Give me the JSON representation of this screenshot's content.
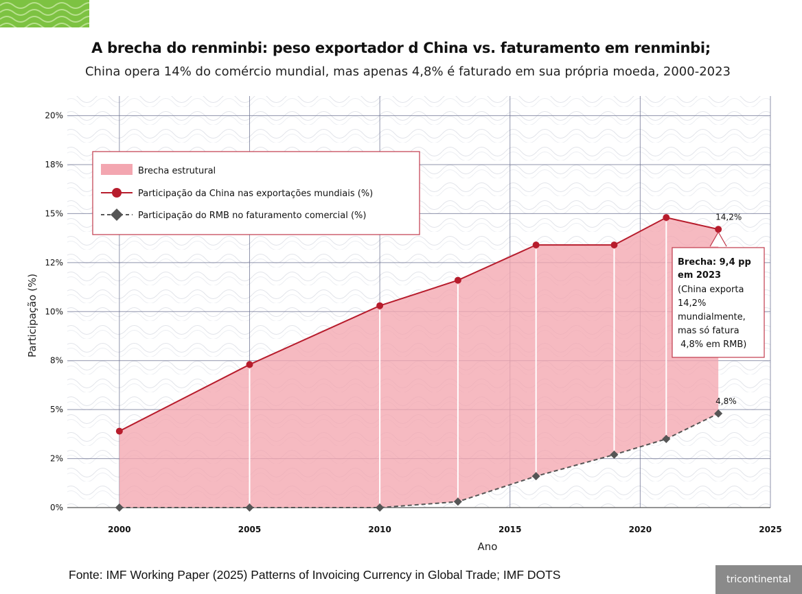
{
  "header": {
    "title": "A brecha do renminbi: peso exportador d China vs. faturamento em renminbi;",
    "subtitle": "China opera 14% do comércio mundial, mas apenas 4,8% é faturado em sua própria moeda, 2000-2023"
  },
  "footer": {
    "source": "Fonte: IMF Working Paper (2025) Patterns of Invoicing Currency in Global Trade; IMF DOTS",
    "brand": "tricontinental"
  },
  "colors": {
    "china_line": "#b71c2c",
    "rmb_line": "#555555",
    "gap_fill": "#f3a6b0",
    "grid": "#6a6f8f",
    "annotation_border": "#c0394b",
    "brand_green": "#7dc242"
  },
  "chart_data": {
    "type": "area",
    "title": "A brecha do renminbi: peso exportador d China vs. faturamento em renminbi;",
    "subtitle": "China opera 14% do comércio mundial, mas apenas 4,8% é faturado em sua própria moeda, 2000-2023",
    "xlabel": "Ano",
    "ylabel": "Participação (%)",
    "xlim": [
      1998,
      2025
    ],
    "ylim": [
      0,
      21
    ],
    "x_ticks": [
      2000,
      2005,
      2010,
      2015,
      2020,
      2025
    ],
    "x_tick_labels": [
      "2000",
      "2005",
      "2010",
      "2015",
      "2020",
      "2025"
    ],
    "y_ticks": [
      0,
      2.5,
      5,
      7.5,
      10,
      12.5,
      15,
      17.5,
      20
    ],
    "y_tick_labels": [
      "0%",
      "2%",
      "5%",
      "8%",
      "10%",
      "12%",
      "15%",
      "18%",
      "20%"
    ],
    "grid": true,
    "legend_position": "top-left",
    "x": [
      2000,
      2005,
      2010,
      2013,
      2016,
      2019,
      2021,
      2023
    ],
    "series": [
      {
        "name": "Participação da China nas exportações mundiais (%)",
        "marker": "circle",
        "style": "solid",
        "values": [
          3.9,
          7.3,
          10.3,
          11.6,
          13.4,
          13.4,
          14.8,
          14.2
        ]
      },
      {
        "name": "Participação do RMB no faturamento comercial (%)",
        "marker": "diamond",
        "style": "dashed",
        "values": [
          0.0,
          0.0,
          0.0,
          0.3,
          1.6,
          2.7,
          3.5,
          4.8
        ]
      }
    ],
    "gap_area": {
      "name": "Brecha estrutural"
    },
    "point_labels": [
      {
        "series": 0,
        "index": 7,
        "text": "14,2%"
      },
      {
        "series": 1,
        "index": 7,
        "text": "4,8%"
      }
    ],
    "annotation": {
      "title_lines": [
        "Brecha: 9,4 pp",
        "em 2023"
      ],
      "body_lines": [
        "(China exporta",
        "14,2%",
        "mundialmente,",
        "mas só fatura",
        " 4,8% em RMB)"
      ]
    }
  }
}
